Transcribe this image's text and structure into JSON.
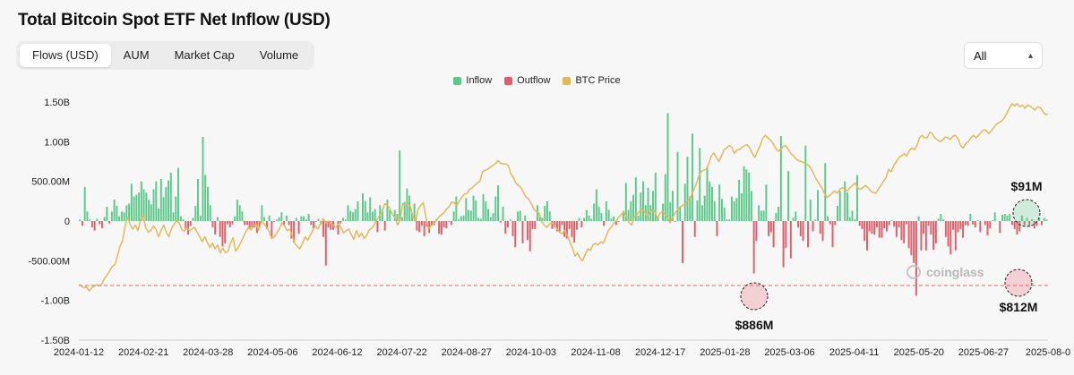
{
  "title": "Total Bitcoin Spot ETF Net Inflow (USD)",
  "tabs": [
    {
      "label": "Flows (USD)",
      "active": true
    },
    {
      "label": "AUM",
      "active": false
    },
    {
      "label": "Market Cap",
      "active": false
    },
    {
      "label": "Volume",
      "active": false
    }
  ],
  "range_select": {
    "value": "All",
    "icon": "chevron-up-down-icon"
  },
  "watermark": "coinglass",
  "colors": {
    "inflow": "#5cc98a",
    "outflow": "#e35d68",
    "btc": "#e2b95a",
    "threshold": "#f08080"
  },
  "chart_data": {
    "type": "bar",
    "legend": [
      "Inflow",
      "Outflow",
      "BTC Price"
    ],
    "y_ticks": [
      {
        "v": 1.5,
        "label": "1.50B"
      },
      {
        "v": 1.0,
        "label": "1.00B"
      },
      {
        "v": 0.5,
        "label": "500.00M"
      },
      {
        "v": 0,
        "label": "0"
      },
      {
        "v": -0.5,
        "label": "-500.00M"
      },
      {
        "v": -1.0,
        "label": "-1.00B"
      },
      {
        "v": -1.5,
        "label": "-1.50B"
      }
    ],
    "ylim": [
      -1.5,
      1.5
    ],
    "x_ticks": [
      "2024-01-12",
      "2024-02-21",
      "2024-03-28",
      "2024-05-06",
      "2024-06-12",
      "2024-07-22",
      "2024-08-27",
      "2024-10-03",
      "2024-11-08",
      "2024-12-17",
      "2025-01-28",
      "2025-03-06",
      "2025-04-11",
      "2025-05-20",
      "2025-06-27",
      "2025-08-0"
    ],
    "bar_count": 390,
    "flows_B": [
      0.02,
      -0.06,
      0.43,
      0.12,
      0.02,
      -0.08,
      -0.12,
      0.03,
      -0.04,
      -0.09,
      0.05,
      0.18,
      -0.03,
      0.12,
      0.27,
      0.19,
      0.06,
      0.12,
      0.11,
      0.2,
      0.22,
      0.47,
      0.31,
      0.33,
      0.36,
      0.5,
      0.4,
      0.36,
      0.27,
      0.21,
      0.4,
      0.5,
      0.16,
      0.53,
      0.3,
      0.43,
      0.51,
      0.61,
      0.11,
      0.31,
      0.67,
      0.06,
      0.02,
      -0.11,
      -0.17,
      -0.06,
      0.04,
      0.19,
      0.53,
      0.07,
      1.06,
      0.58,
      0.43,
      0.2,
      -0.08,
      -0.17,
      0.05,
      -0.2,
      -0.32,
      -0.28,
      -0.04,
      -0.08,
      -0.04,
      0.06,
      0.27,
      0.2,
      0.12,
      -0.05,
      -0.05,
      -0.1,
      -0.08,
      -0.08,
      -0.15,
      -0.08,
      0.2,
      0.05,
      -0.1,
      0.07,
      -0.2,
      -0.01,
      0.02,
      0.05,
      0.11,
      -0.05,
      0.07,
      -0.05,
      -0.22,
      -0.27,
      0.04,
      -0.16,
      0.06,
      0.06,
      0.02,
      0.09,
      -0.05,
      -0.09,
      -0.01,
      0.03,
      -0.04,
      -0.2,
      -0.56,
      -0.08,
      -0.11,
      -0.11,
      0.0,
      -0.17,
      -0.03,
      0.04,
      0.02,
      0.2,
      0.13,
      0.11,
      0.15,
      0.25,
      0.0,
      0.35,
      0.25,
      0.11,
      0.3,
      0.12,
      0.15,
      -0.14,
      0.2,
      0.15,
      -0.12,
      0.27,
      0.14,
      0.0,
      0.14,
      0.09,
      0.89,
      0.05,
      0.24,
      0.41,
      0.32,
      0.1,
      0.22,
      -0.12,
      -0.14,
      -0.06,
      -0.19,
      -0.07,
      -0.15,
      -0.06,
      -0.05,
      0.03,
      -0.16,
      -0.17,
      -0.08,
      -0.09,
      -0.01,
      -0.05,
      0.12,
      0.31,
      0.02,
      0.06,
      0.07,
      0.29,
      0.14,
      0.13,
      0.32,
      0.26,
      0.04,
      0.03,
      0.34,
      0.25,
      0.15,
      0.05,
      0.1,
      0.31,
      0.45,
      -0.02,
      0.18,
      -0.16,
      -0.08,
      0.02,
      -0.19,
      -0.33,
      0.12,
      0.13,
      -0.28,
      0.07,
      -0.24,
      -0.38,
      -0.1,
      -0.1,
      0.2,
      0.08,
      0.04,
      0.19,
      0.25,
      0.12,
      -0.1,
      -0.08,
      -0.13,
      -0.13,
      -0.05,
      -0.2,
      -0.22,
      -0.1,
      -0.2,
      -0.27,
      -0.11,
      0.04,
      -0.08,
      0.04,
      0.14,
      0.07,
      0.03,
      0.22,
      0.4,
      0.18,
      0.1,
      -0.06,
      0.25,
      0.14,
      0.03,
      0.06,
      -0.05,
      -0.01,
      0.0,
      0.13,
      0.48,
      0.14,
      0.25,
      0.33,
      0.55,
      0.07,
      0.36,
      0.5,
      0.2,
      0.42,
      0.2,
      0.38,
      0.61,
      0.06,
      0.0,
      0.22,
      0.59,
      1.36,
      0.24,
      0.38,
      -0.01,
      0.87,
      0.18,
      -0.53,
      0.47,
      0.81,
      0.31,
      1.1,
      -0.2,
      0.26,
      0.92,
      0.2,
      0.32,
      0.68,
      0.5,
      0.43,
      0.25,
      -0.19,
      0.46,
      0.28,
      0.17,
      0.02,
      0.02,
      0.31,
      0.25,
      0.29,
      0.52,
      0.35,
      0.69,
      0.65,
      0.61,
      0.38,
      -0.66,
      -0.25,
      0.2,
      0.13,
      0.13,
      0.46,
      -0.19,
      -0.14,
      -0.33,
      0.1,
      0.18,
      1.07,
      -0.58,
      -0.34,
      0.63,
      -0.47,
      0.04,
      0.12,
      -0.08,
      -0.19,
      -0.25,
      0.95,
      -0.33,
      0.27,
      -0.13,
      0.02,
      0.39,
      -0.16,
      -0.25,
      0.73,
      0.06,
      -0.04,
      -0.33,
      -0.05,
      0.19,
      0.38,
      0.0,
      0.5,
      0.36,
      0.05,
      0.13,
      0.02,
      0.58,
      -0.06,
      -0.1,
      -0.25,
      -0.37,
      -0.13,
      -0.16,
      -0.17,
      -0.08,
      -0.21,
      -0.21,
      -0.09,
      -0.13,
      -0.05,
      0.01,
      -0.07,
      -0.2,
      -0.08,
      -0.24,
      -0.28,
      -0.04,
      -0.34,
      -0.43,
      -0.53,
      -0.94,
      0.06,
      -0.37,
      -0.16,
      -0.37,
      -0.06,
      -0.17,
      -0.36,
      -0.28,
      0.03,
      0.09,
      0.02,
      -0.2,
      -0.32,
      -0.42,
      -0.11,
      -0.37,
      -0.14,
      -0.1,
      -0.21,
      -0.05,
      -0.06,
      0.09,
      -0.04,
      -0.08,
      0.01,
      -0.14,
      0.0,
      -0.05,
      -0.18,
      -0.09,
      0.01,
      0.11,
      0.0,
      -0.15,
      0.08,
      0.09,
      0.07,
      0.09,
      -0.05,
      -0.1,
      -0.17,
      -0.13,
      0.07,
      -0.05,
      0.04,
      -0.07,
      0.02,
      -0.09,
      -0.06,
      0.04,
      -0.05,
      0.04,
      0.02
    ],
    "btc_price_B": [
      -0.8,
      -0.82,
      -0.84,
      -0.83,
      -0.88,
      -0.84,
      -0.82,
      -0.8,
      -0.82,
      -0.79,
      -0.72,
      -0.68,
      -0.63,
      -0.57,
      -0.55,
      -0.44,
      -0.32,
      -0.25,
      -0.06,
      0.05,
      -0.05,
      -0.1,
      -0.05,
      -0.12,
      0.02,
      0.07,
      -0.08,
      -0.14,
      -0.12,
      -0.06,
      -0.1,
      -0.2,
      -0.12,
      -0.05,
      -0.14,
      -0.2,
      -0.1,
      -0.04,
      0.0,
      -0.02,
      -0.1,
      -0.13,
      -0.08,
      -0.12,
      -0.1,
      -0.08,
      -0.14,
      -0.2,
      -0.26,
      -0.2,
      -0.27,
      -0.33,
      -0.28,
      -0.35,
      -0.3,
      -0.4,
      -0.34,
      -0.4,
      -0.38,
      -0.28,
      -0.21,
      -0.38,
      -0.33,
      -0.27,
      -0.2,
      -0.13,
      -0.08,
      -0.11,
      -0.06,
      -0.04,
      -0.12,
      0.0,
      -0.03,
      -0.08,
      -0.13,
      -0.22,
      -0.2,
      -0.15,
      -0.1,
      -0.02,
      -0.06,
      -0.12,
      -0.1,
      -0.18,
      -0.28,
      -0.32,
      -0.35,
      -0.28,
      -0.2,
      -0.24,
      -0.18,
      -0.12,
      -0.06,
      -0.1,
      -0.03,
      0.03,
      -0.02,
      0.0,
      -0.02,
      -0.05,
      -0.08,
      -0.04,
      -0.08,
      -0.15,
      -0.12,
      -0.1,
      -0.17,
      -0.23,
      -0.12,
      -0.2,
      -0.15,
      -0.22,
      -0.18,
      -0.11,
      -0.09,
      -0.04,
      0.02,
      0.07,
      0.12,
      0.22,
      0.2,
      0.16,
      0.08,
      0.05,
      -0.05,
      0.02,
      0.22,
      0.2,
      0.22,
      0.18,
      0.05,
      0.0,
      0.15,
      0.2,
      0.23,
      0.05,
      -0.1,
      -0.06,
      -0.03,
      0.0,
      0.05,
      0.08,
      0.1,
      0.15,
      0.18,
      0.24,
      0.23,
      0.2,
      0.25,
      0.3,
      0.34,
      0.35,
      0.4,
      0.42,
      0.45,
      0.48,
      0.5,
      0.62,
      0.64,
      0.65,
      0.68,
      0.7,
      0.72,
      0.76,
      0.73,
      0.72,
      0.72,
      0.7,
      0.6,
      0.55,
      0.48,
      0.45,
      0.42,
      0.36,
      0.3,
      0.28,
      0.22,
      0.15,
      0.12,
      0.1,
      0.0,
      -0.05,
      -0.08,
      -0.04,
      -0.02,
      -0.06,
      -0.1,
      -0.14,
      -0.16,
      -0.12,
      -0.18,
      -0.26,
      -0.34,
      -0.44,
      -0.4,
      -0.47,
      -0.5,
      -0.42,
      -0.35,
      -0.37,
      -0.3,
      -0.28,
      -0.3,
      -0.26,
      -0.28,
      -0.2,
      -0.12,
      -0.08,
      -0.03,
      0.0,
      0.05,
      0.08,
      0.12,
      0.05,
      -0.02,
      -0.05,
      0.05,
      0.08,
      0.12,
      0.15,
      0.12,
      0.05,
      0.1,
      0.14,
      0.12,
      0.03,
      0.1,
      0.12,
      0.08,
      0.04,
      -0.02,
      0.05,
      0.1,
      0.15,
      0.18,
      0.2,
      0.22,
      0.26,
      0.3,
      0.38,
      0.45,
      0.55,
      0.62,
      0.64,
      0.65,
      0.72,
      0.82,
      0.86,
      0.8,
      0.75,
      0.82,
      0.9,
      0.92,
      0.95,
      0.93,
      0.85,
      0.9,
      0.9,
      0.93,
      0.95,
      0.96,
      0.92,
      0.85,
      0.8,
      0.88,
      0.95,
      1.04,
      1.08,
      1.05,
      1.02,
      0.98,
      0.92,
      0.88,
      0.9,
      0.94,
      0.95,
      0.9,
      0.85,
      0.82,
      0.78,
      0.76,
      0.75,
      0.74,
      0.72,
      0.7,
      0.65,
      0.58,
      0.52,
      0.47,
      0.42,
      0.35,
      0.3,
      0.32,
      0.35,
      0.38,
      0.35,
      0.4,
      0.42,
      0.4,
      0.38,
      0.42,
      0.45,
      0.48,
      0.42,
      0.4,
      0.42,
      0.45,
      0.42,
      0.38,
      0.36,
      0.35,
      0.4,
      0.45,
      0.5,
      0.55,
      0.65,
      0.62,
      0.7,
      0.75,
      0.8,
      0.82,
      0.85,
      0.82,
      0.88,
      0.92,
      0.9,
      0.95,
      1.05,
      1.08,
      1.05,
      1.05,
      1.12,
      1.1,
      1.05,
      1.02,
      1.0,
      1.02,
      1.06,
      1.05,
      1.03,
      1.07,
      1.08,
      1.04,
      0.95,
      0.92,
      0.98,
      1.0,
      1.05,
      1.08,
      1.05,
      1.08,
      1.12,
      1.15,
      1.14,
      1.1,
      1.14,
      1.18,
      1.22,
      1.24,
      1.26,
      1.3,
      1.36,
      1.42,
      1.48,
      1.45,
      1.48,
      1.44,
      1.46,
      1.42,
      1.46,
      1.45,
      1.42,
      1.4,
      1.44,
      1.43,
      1.38,
      1.34,
      1.35
    ],
    "threshold_value": -0.812,
    "callouts": [
      {
        "label": "$886M",
        "value": -0.886,
        "kind": "outflow",
        "text_pos": "below"
      },
      {
        "label": "$91M",
        "value": 0.091,
        "kind": "inflow",
        "text_pos": "above"
      },
      {
        "label": "$812M",
        "value": -0.812,
        "kind": "outflow",
        "text_pos": "below"
      }
    ]
  }
}
